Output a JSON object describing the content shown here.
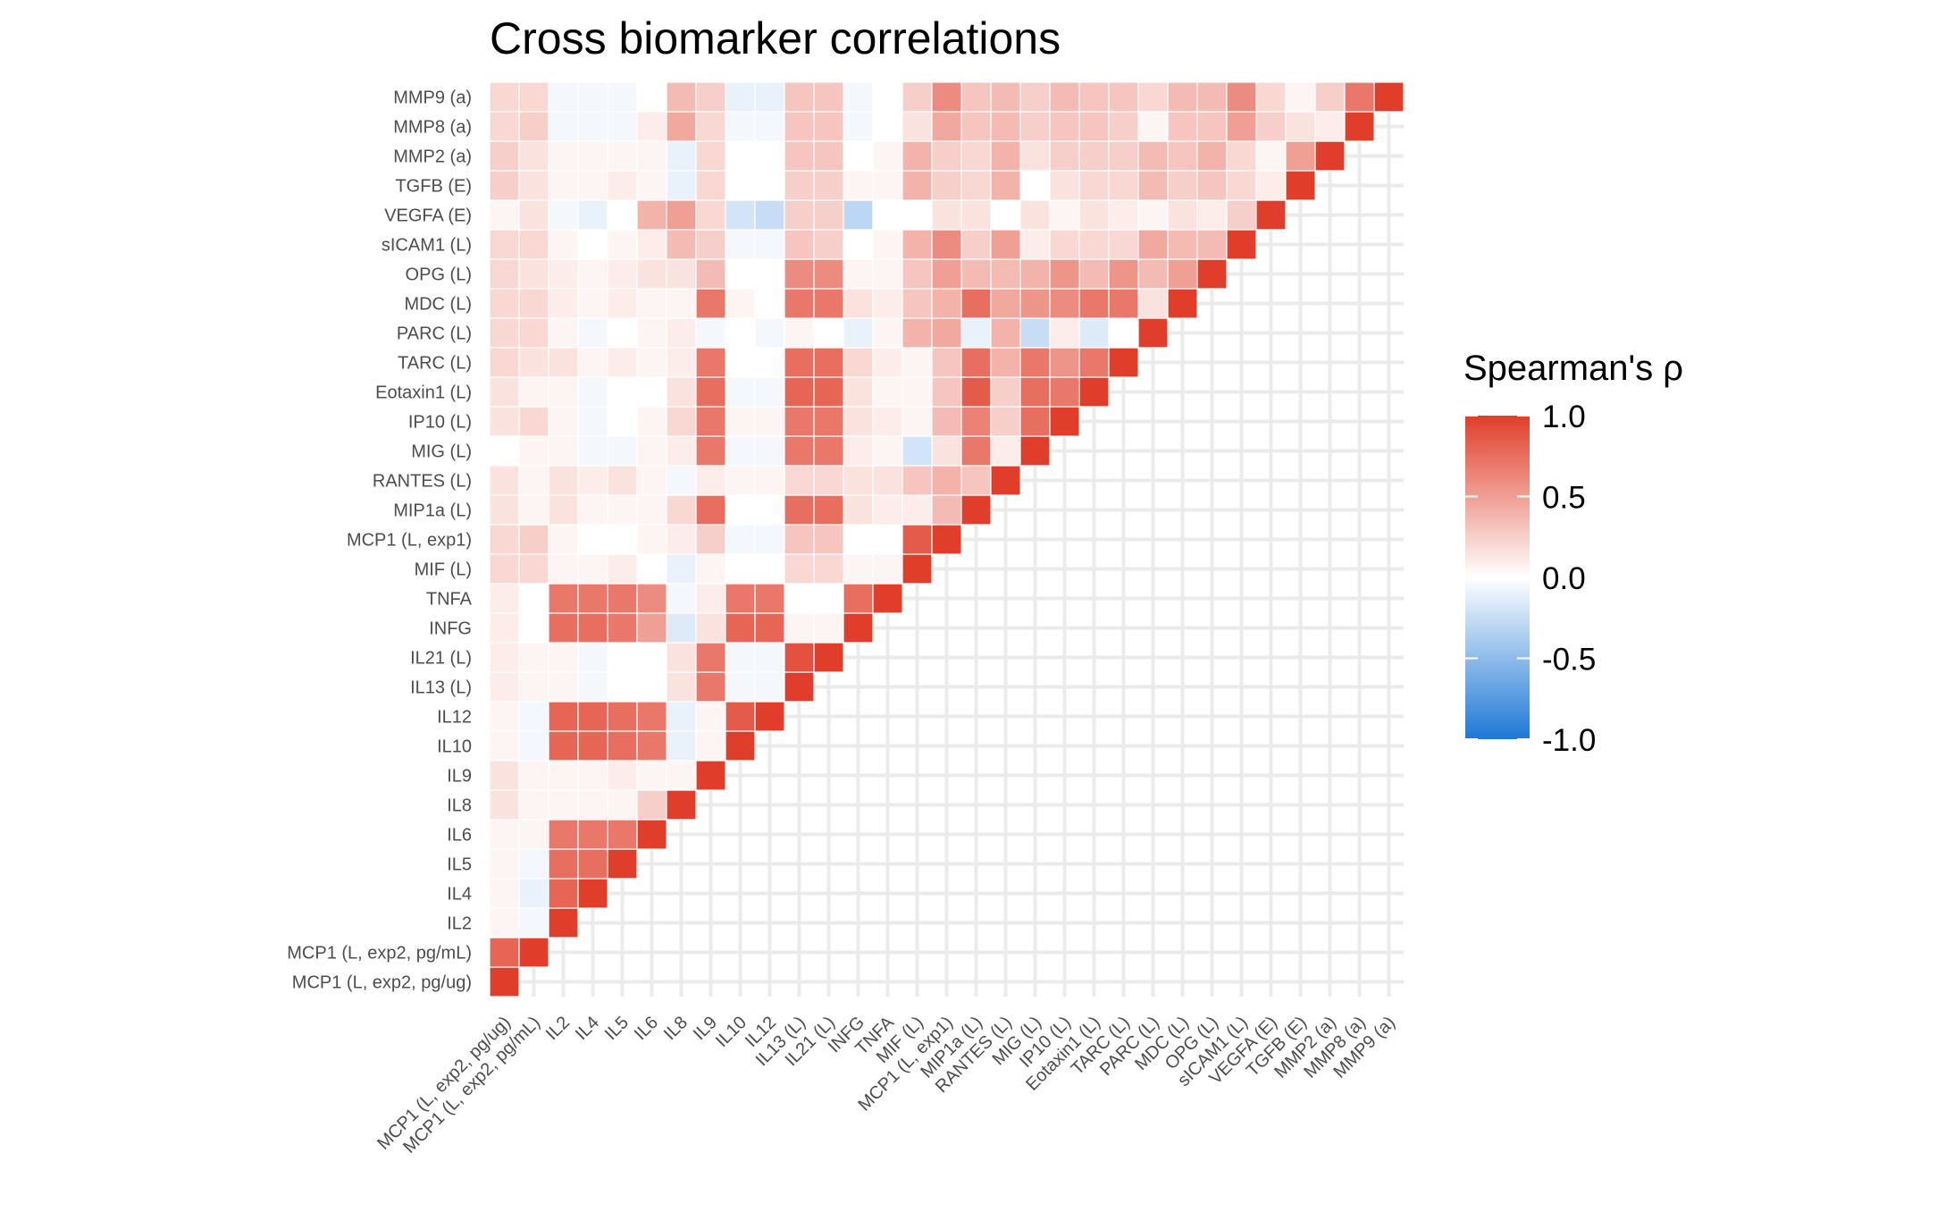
{
  "chart_data": {
    "type": "heatmap",
    "title": "Cross biomarker correlations",
    "xlabel": "",
    "ylabel": "",
    "variables": [
      "MCP1 (L, exp2, pg/ug)",
      "MCP1 (L, exp2, pg/mL)",
      "IL2",
      "IL4",
      "IL5",
      "IL6",
      "IL8",
      "IL9",
      "IL10",
      "IL12",
      "IL13 (L)",
      "IL21 (L)",
      "INFG",
      "TNFA",
      "MIF (L)",
      "MCP1 (L, exp1)",
      "MIP1a (L)",
      "RANTES (L)",
      "MIG (L)",
      "IP10 (L)",
      "Eotaxin1 (L)",
      "TARC (L)",
      "PARC (L)",
      "MDC (L)",
      "OPG (L)",
      "sICAM1 (L)",
      "VEGFA (E)",
      "TGFB (E)",
      "MMP2 (a)",
      "MMP8 (a)",
      "MMP9 (a)"
    ],
    "legend": {
      "title": "Spearman's ρ",
      "position": "right",
      "range": [
        -1.0,
        1.0
      ],
      "ticks": [
        "1.0",
        "0.5",
        "0.0",
        "-0.5",
        "-1.0"
      ],
      "colors": {
        "low": "#1e78d6",
        "mid": "#ffffff",
        "high": "#e03e2a"
      }
    },
    "grid": true,
    "matrix_note": "values[i][j] is the correlation of variables[i] (y) with variables[j] (x), lower triangle only (j <= i); diagonal = 1",
    "values": [
      [
        1.0
      ],
      [
        0.8,
        1.0
      ],
      [
        0.05,
        -0.05,
        1.0
      ],
      [
        0.05,
        -0.1,
        0.8,
        1.0
      ],
      [
        0.05,
        -0.05,
        0.75,
        0.75,
        1.0
      ],
      [
        0.05,
        0.05,
        0.7,
        0.7,
        0.7,
        1.0
      ],
      [
        0.15,
        0.05,
        0.05,
        0.05,
        0.05,
        0.25,
        1.0
      ],
      [
        0.15,
        0.05,
        0.05,
        0.05,
        0.1,
        0.05,
        0.05,
        1.0
      ],
      [
        0.05,
        -0.05,
        0.8,
        0.8,
        0.75,
        0.7,
        -0.1,
        0.05,
        1.0
      ],
      [
        0.05,
        -0.05,
        0.8,
        0.8,
        0.75,
        0.7,
        -0.1,
        0.05,
        0.85,
        1.0
      ],
      [
        0.1,
        0.05,
        0.05,
        -0.05,
        0.0,
        0.0,
        0.15,
        0.7,
        -0.05,
        -0.05,
        1.0
      ],
      [
        0.1,
        0.05,
        0.05,
        -0.05,
        0.0,
        0.0,
        0.15,
        0.7,
        -0.05,
        -0.05,
        0.9,
        1.0
      ],
      [
        0.1,
        0.0,
        0.75,
        0.75,
        0.7,
        0.5,
        -0.15,
        0.15,
        0.8,
        0.8,
        0.05,
        0.05,
        1.0
      ],
      [
        0.1,
        0.0,
        0.7,
        0.7,
        0.7,
        0.6,
        -0.05,
        0.1,
        0.7,
        0.7,
        0.0,
        0.0,
        0.75,
        1.0
      ],
      [
        0.2,
        0.2,
        0.05,
        0.05,
        0.1,
        0.0,
        -0.1,
        0.05,
        0.0,
        0.0,
        0.2,
        0.2,
        0.05,
        0.05,
        1.0
      ],
      [
        0.2,
        0.25,
        0.05,
        0.0,
        0.0,
        0.05,
        0.1,
        0.25,
        -0.05,
        -0.05,
        0.3,
        0.3,
        0.0,
        0.0,
        0.85,
        1.0
      ],
      [
        0.15,
        0.05,
        0.15,
        0.05,
        0.05,
        0.05,
        0.2,
        0.75,
        0.0,
        0.0,
        0.75,
        0.75,
        0.15,
        0.1,
        0.1,
        0.35,
        1.0
      ],
      [
        0.15,
        0.05,
        0.15,
        0.1,
        0.15,
        0.05,
        -0.05,
        0.1,
        0.05,
        0.05,
        0.2,
        0.2,
        0.15,
        0.15,
        0.3,
        0.4,
        0.3,
        1.0
      ],
      [
        0.0,
        0.05,
        0.05,
        -0.05,
        -0.05,
        0.05,
        0.1,
        0.7,
        -0.05,
        -0.05,
        0.7,
        0.7,
        0.1,
        0.05,
        -0.2,
        0.15,
        0.7,
        0.1,
        1.0
      ],
      [
        0.15,
        0.2,
        0.05,
        -0.05,
        0.0,
        0.05,
        0.2,
        0.7,
        0.05,
        0.05,
        0.7,
        0.7,
        0.15,
        0.1,
        0.05,
        0.35,
        0.65,
        0.25,
        0.75,
        1.0
      ],
      [
        0.15,
        0.05,
        0.05,
        -0.05,
        0.0,
        0.0,
        0.15,
        0.75,
        -0.05,
        -0.05,
        0.8,
        0.8,
        0.15,
        0.05,
        0.05,
        0.3,
        0.85,
        0.25,
        0.75,
        0.7,
        1.0
      ],
      [
        0.2,
        0.15,
        0.15,
        0.05,
        0.1,
        0.05,
        0.1,
        0.7,
        0.0,
        0.0,
        0.75,
        0.75,
        0.2,
        0.1,
        0.05,
        0.3,
        0.75,
        0.4,
        0.7,
        0.55,
        0.7,
        1.0
      ],
      [
        0.2,
        0.2,
        0.05,
        -0.05,
        0.0,
        0.05,
        0.1,
        -0.05,
        0.0,
        -0.05,
        0.05,
        0.0,
        -0.1,
        0.05,
        0.4,
        0.45,
        -0.1,
        0.4,
        -0.25,
        0.1,
        -0.15,
        0.0,
        1.0
      ],
      [
        0.2,
        0.2,
        0.1,
        0.05,
        0.1,
        0.05,
        0.05,
        0.7,
        0.05,
        0.0,
        0.7,
        0.7,
        0.15,
        0.1,
        0.3,
        0.4,
        0.75,
        0.45,
        0.55,
        0.6,
        0.7,
        0.7,
        0.15,
        1.0
      ],
      [
        0.2,
        0.15,
        0.1,
        0.05,
        0.1,
        0.15,
        0.15,
        0.35,
        0.0,
        0.0,
        0.6,
        0.6,
        0.05,
        0.05,
        0.3,
        0.5,
        0.35,
        0.35,
        0.4,
        0.55,
        0.35,
        0.55,
        0.35,
        0.5,
        1.0
      ],
      [
        0.2,
        0.2,
        0.05,
        0.0,
        0.05,
        0.1,
        0.35,
        0.25,
        -0.05,
        -0.05,
        0.3,
        0.25,
        0.0,
        0.05,
        0.4,
        0.6,
        0.25,
        0.5,
        0.1,
        0.2,
        0.2,
        0.2,
        0.45,
        0.35,
        0.35,
        1.0
      ],
      [
        0.05,
        0.15,
        -0.05,
        -0.1,
        0.0,
        0.4,
        0.5,
        0.2,
        -0.2,
        -0.25,
        0.25,
        0.25,
        -0.3,
        0.0,
        0.0,
        0.15,
        0.15,
        0.0,
        0.15,
        0.05,
        0.15,
        0.1,
        0.05,
        0.15,
        0.1,
        0.25,
        1.0
      ],
      [
        0.25,
        0.15,
        0.05,
        0.05,
        0.1,
        0.05,
        -0.1,
        0.2,
        0.0,
        0.0,
        0.25,
        0.25,
        0.05,
        0.05,
        0.4,
        0.25,
        0.2,
        0.4,
        0.0,
        0.15,
        0.2,
        0.2,
        0.35,
        0.25,
        0.3,
        0.2,
        0.1,
        1.0
      ],
      [
        0.25,
        0.15,
        0.05,
        0.05,
        0.05,
        0.05,
        -0.1,
        0.2,
        0.0,
        0.0,
        0.3,
        0.3,
        0.0,
        0.05,
        0.4,
        0.25,
        0.2,
        0.4,
        0.15,
        0.25,
        0.25,
        0.25,
        0.35,
        0.3,
        0.4,
        0.2,
        0.05,
        0.5,
        1.0
      ],
      [
        0.2,
        0.25,
        -0.05,
        -0.05,
        -0.05,
        0.1,
        0.45,
        0.2,
        -0.05,
        -0.05,
        0.3,
        0.3,
        -0.05,
        0.0,
        0.15,
        0.45,
        0.3,
        0.35,
        0.25,
        0.3,
        0.3,
        0.25,
        0.05,
        0.3,
        0.3,
        0.5,
        0.25,
        0.15,
        0.1,
        1.0
      ],
      [
        0.2,
        0.2,
        -0.05,
        -0.05,
        -0.05,
        0.0,
        0.35,
        0.25,
        -0.1,
        -0.1,
        0.3,
        0.3,
        -0.05,
        0.0,
        0.25,
        0.6,
        0.3,
        0.35,
        0.25,
        0.35,
        0.3,
        0.3,
        0.2,
        0.35,
        0.35,
        0.6,
        0.2,
        0.05,
        0.25,
        0.7,
        1.0
      ]
    ]
  }
}
